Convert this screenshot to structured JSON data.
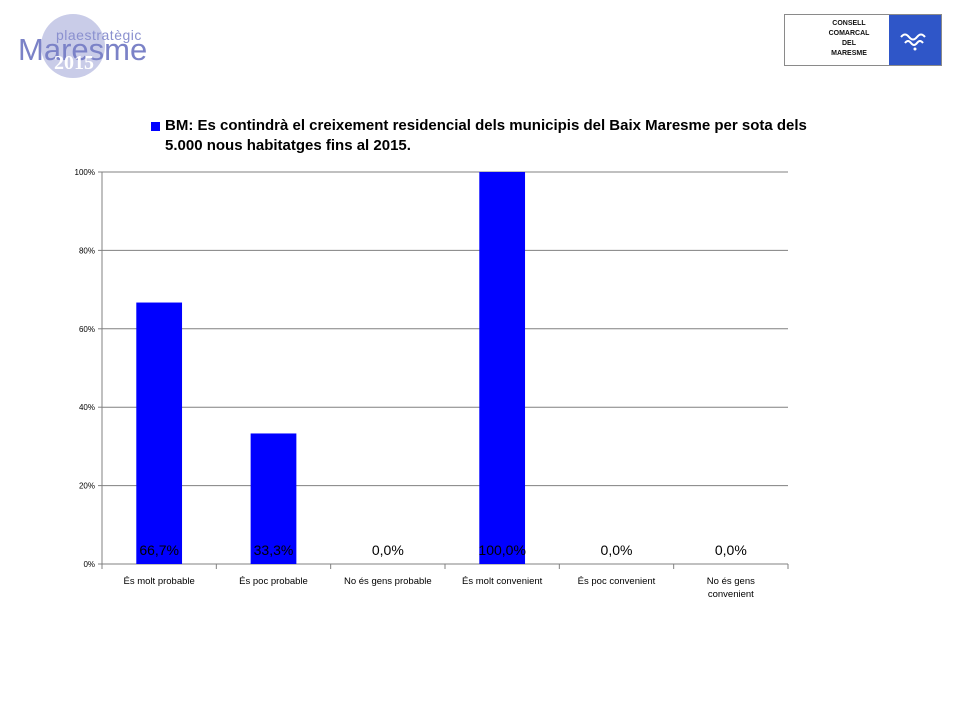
{
  "logo_left": {
    "small_text": "plaestratègic",
    "big_text": "Maresme",
    "year": "2015"
  },
  "logo_right": {
    "lines": [
      "CONSELL",
      "COMARCAL",
      "DEL",
      "MARESME"
    ],
    "icon": "waves-emblem-icon"
  },
  "colors": {
    "bar": "#0000ff",
    "grid": "#808080",
    "axis": "#808080",
    "text": "#000000"
  },
  "chart_data": {
    "type": "bar",
    "legend": "BM: Es contindrà el creixement residencial dels municipis del Baix Maresme per sota dels 5.000 nous habitatges fins al 2015.",
    "categories": [
      "És molt probable",
      "És poc probable",
      "No és gens probable",
      "És molt convenient",
      "És poc convenient",
      "No és gens convenient"
    ],
    "values": [
      66.7,
      33.3,
      0.0,
      100.0,
      0.0,
      0.0
    ],
    "data_labels": [
      "66,7%",
      "33,3%",
      "0,0%",
      "100,0%",
      "0,0%",
      "0,0%"
    ],
    "y_ticks": [
      "0%",
      "20%",
      "40%",
      "60%",
      "80%",
      "100%"
    ],
    "ylim": [
      0,
      100
    ],
    "grid": true,
    "legend_position": "top"
  }
}
